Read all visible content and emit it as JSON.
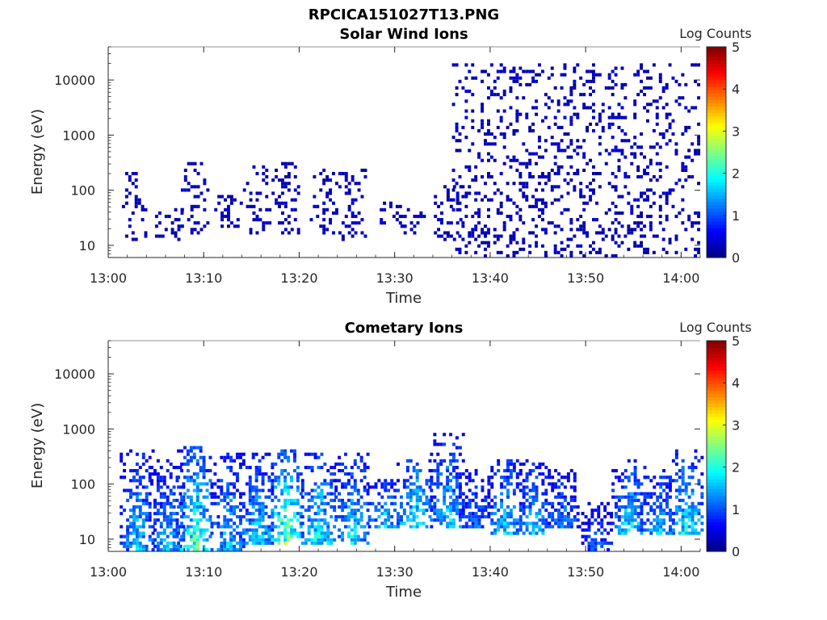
{
  "figure_title": "RPCICA151027T13.PNG",
  "chart_data": [
    {
      "type": "heatmap",
      "title": "Solar Wind Ions",
      "xlabel": "Time",
      "ylabel": "Energy (eV)",
      "yscale": "log",
      "ylim": [
        6,
        40000
      ],
      "xlim": [
        "13:00",
        "14:02"
      ],
      "x_ticks": [
        "13:00",
        "13:10",
        "13:20",
        "13:30",
        "13:40",
        "13:50",
        "14:00"
      ],
      "y_ticks": [
        "10",
        "100",
        "1000",
        "10000"
      ],
      "colorbar": {
        "label": "Log Counts",
        "range": [
          0,
          5
        ],
        "ticks": [
          "0",
          "1",
          "2",
          "3",
          "4",
          "5"
        ],
        "colormap": "jet"
      },
      "bursts": [
        {
          "t": 2.5,
          "e_low": 12,
          "e_high": 250,
          "level": 0.3
        },
        {
          "t": 6.3,
          "e_low": 12,
          "e_high": 45,
          "level": 0.3
        },
        {
          "t": 9.0,
          "e_low": 16,
          "e_high": 330,
          "level": 0.45
        },
        {
          "t": 12.5,
          "e_low": 20,
          "e_high": 80,
          "level": 0.3
        },
        {
          "t": 15.5,
          "e_low": 16,
          "e_high": 300,
          "level": 0.4
        },
        {
          "t": 18.5,
          "e_low": 16,
          "e_high": 330,
          "level": 0.5
        },
        {
          "t": 22.5,
          "e_low": 16,
          "e_high": 250,
          "level": 0.4
        },
        {
          "t": 25.5,
          "e_low": 12,
          "e_high": 240,
          "level": 0.35
        },
        {
          "t": 29.5,
          "e_low": 20,
          "e_high": 60,
          "level": 0.3
        },
        {
          "t": 32.0,
          "e_low": 16,
          "e_high": 50,
          "level": 0.35
        },
        {
          "t": 35.5,
          "e_low": 12,
          "e_high": 120,
          "level": 0.35
        }
      ],
      "diffuse": {
        "t_start": 36.0,
        "t_end": 62.0,
        "e_low": 6,
        "e_high": 20000,
        "level": 0.25
      }
    },
    {
      "type": "heatmap",
      "title": "Cometary Ions",
      "xlabel": "Time",
      "ylabel": "Energy (eV)",
      "yscale": "log",
      "ylim": [
        6,
        40000
      ],
      "xlim": [
        "13:00",
        "14:02"
      ],
      "x_ticks": [
        "13:00",
        "13:10",
        "13:20",
        "13:30",
        "13:40",
        "13:50",
        "14:00"
      ],
      "y_ticks": [
        "10",
        "100",
        "1000",
        "10000"
      ],
      "colorbar": {
        "label": "Log Counts",
        "range": [
          0,
          5
        ],
        "ticks": [
          "0",
          "1",
          "2",
          "3",
          "4",
          "5"
        ],
        "colormap": "jet"
      },
      "bursts": [
        {
          "t": 3.0,
          "e_low": 6,
          "e_high": 400,
          "level": 1.6
        },
        {
          "t": 6.2,
          "e_low": 6,
          "e_high": 300,
          "level": 1.5
        },
        {
          "t": 9.0,
          "e_low": 6,
          "e_high": 500,
          "level": 2.2
        },
        {
          "t": 12.5,
          "e_low": 6,
          "e_high": 350,
          "level": 1.6
        },
        {
          "t": 15.5,
          "e_low": 8,
          "e_high": 350,
          "level": 1.7
        },
        {
          "t": 18.5,
          "e_low": 8,
          "e_high": 450,
          "level": 2.4
        },
        {
          "t": 22.0,
          "e_low": 8,
          "e_high": 350,
          "level": 1.9
        },
        {
          "t": 25.5,
          "e_low": 8,
          "e_high": 380,
          "level": 1.8
        },
        {
          "t": 29.0,
          "e_low": 16,
          "e_high": 120,
          "level": 1.7
        },
        {
          "t": 32.0,
          "e_low": 16,
          "e_high": 300,
          "level": 2.0
        },
        {
          "t": 35.5,
          "e_low": 16,
          "e_high": 800,
          "level": 1.7
        },
        {
          "t": 38.5,
          "e_low": 16,
          "e_high": 200,
          "level": 1.2
        },
        {
          "t": 41.5,
          "e_low": 12,
          "e_high": 300,
          "level": 1.7
        },
        {
          "t": 44.5,
          "e_low": 12,
          "e_high": 300,
          "level": 1.6
        },
        {
          "t": 47.5,
          "e_low": 16,
          "e_high": 200,
          "level": 1.3
        },
        {
          "t": 51.0,
          "e_low": 6,
          "e_high": 50,
          "level": 1.1
        },
        {
          "t": 54.5,
          "e_low": 12,
          "e_high": 300,
          "level": 1.8
        },
        {
          "t": 57.5,
          "e_low": 12,
          "e_high": 200,
          "level": 1.6
        },
        {
          "t": 60.5,
          "e_low": 12,
          "e_high": 450,
          "level": 1.9
        }
      ]
    }
  ]
}
